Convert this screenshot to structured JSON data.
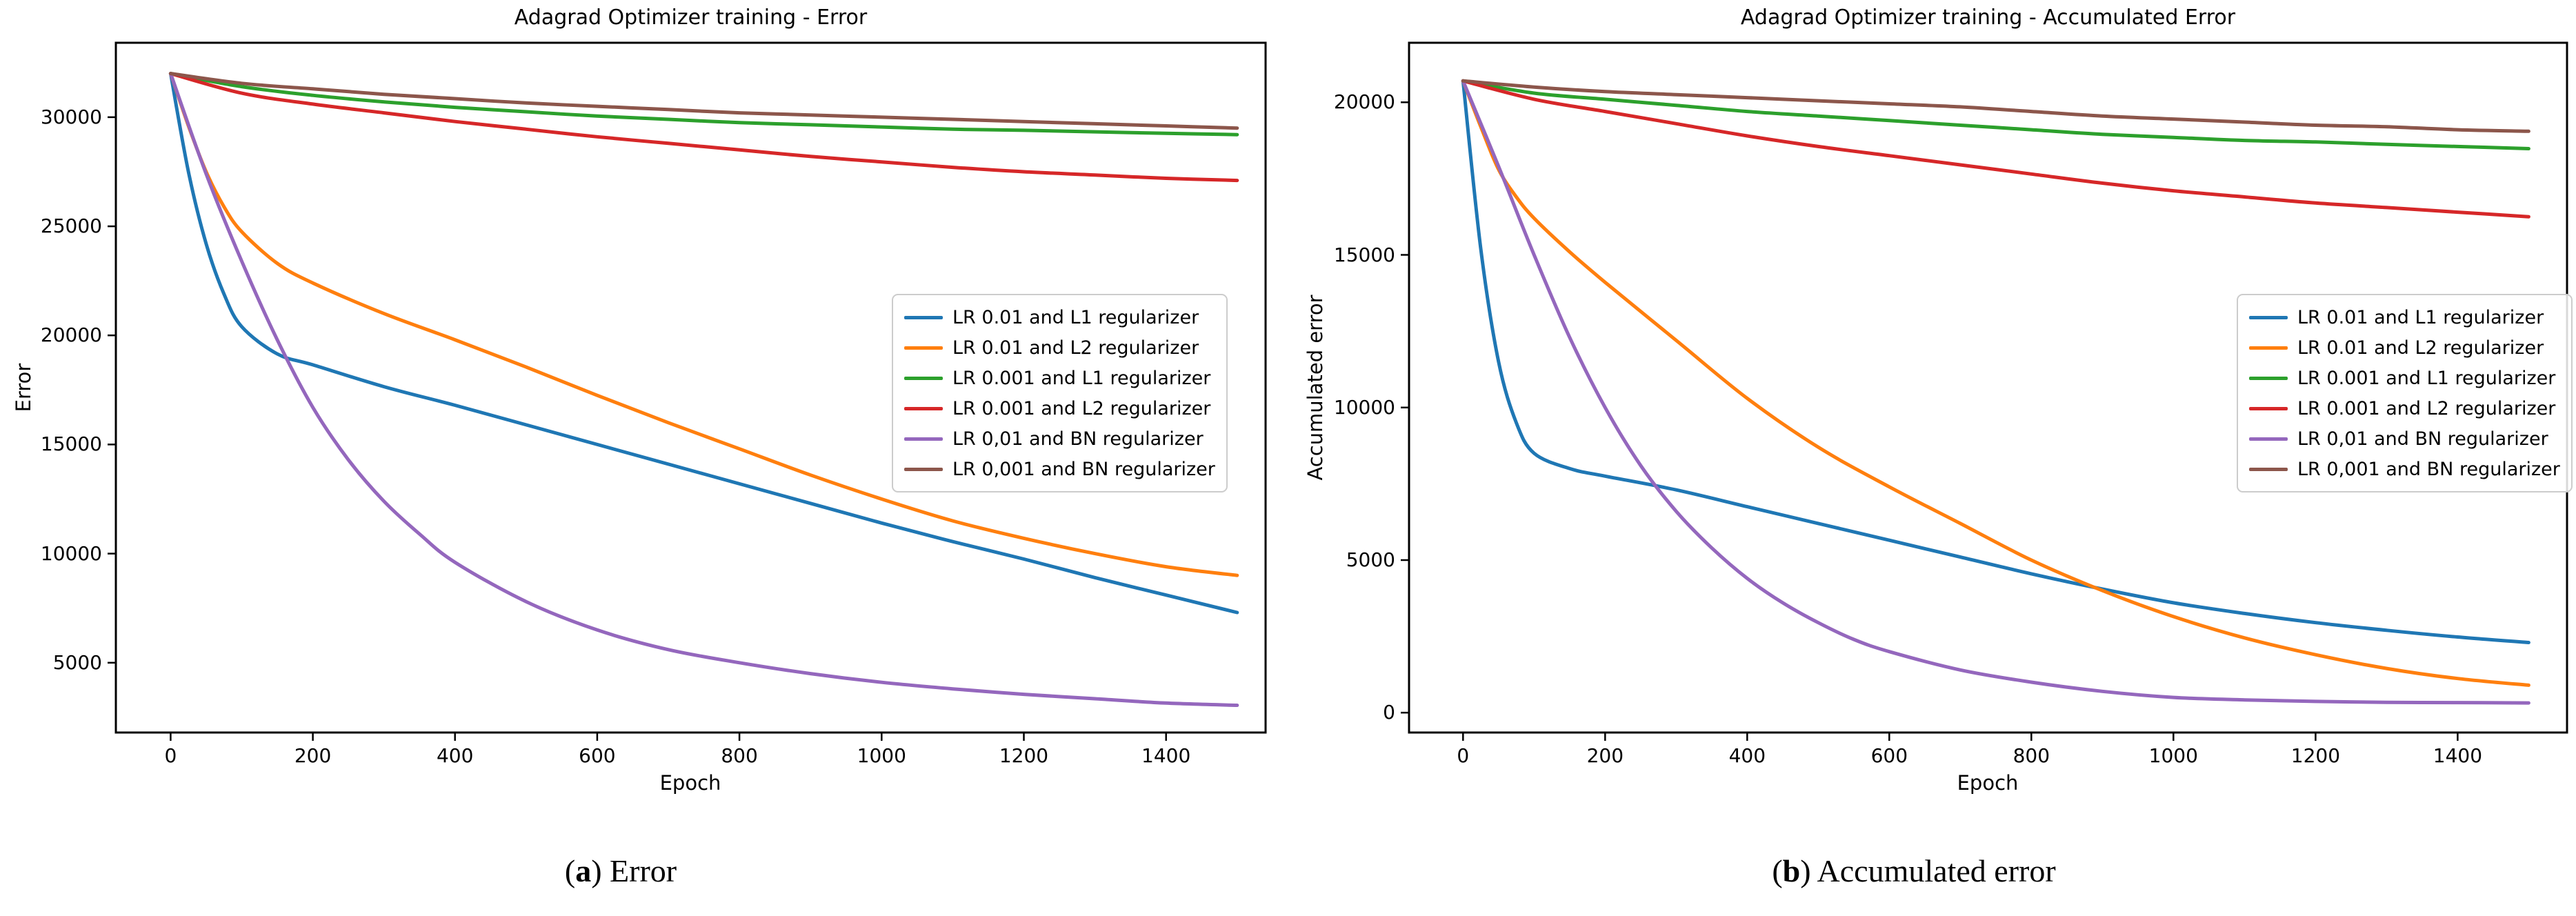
{
  "figure": {
    "background": "#ffffff",
    "captions": [
      {
        "open": "(",
        "label": "a",
        "close": ")",
        "text": "Error"
      },
      {
        "open": "(",
        "label": "b",
        "close": ")",
        "text": "Accumulated error"
      }
    ]
  },
  "palette": {
    "blue": "#1f77b4",
    "orange": "#ff7f0e",
    "green": "#2ca02c",
    "red": "#d62728",
    "purple": "#9467bd",
    "brown": "#8c564b",
    "axis": "#000000",
    "legend_border": "#cccccc"
  },
  "chart_data": [
    {
      "type": "line",
      "title": "Adagrad Optimizer training - Error",
      "xlabel": "Epoch",
      "ylabel": "Error",
      "xlim": [
        -77,
        1540
      ],
      "ylim": [
        1800,
        33410
      ],
      "x_ticks": [
        0,
        200,
        400,
        600,
        800,
        1000,
        1200,
        1400
      ],
      "y_ticks": [
        5000,
        10000,
        15000,
        20000,
        25000,
        30000
      ],
      "grid": false,
      "legend_position": "center right",
      "series": [
        {
          "name": "LR 0.01 and L1 regularizer",
          "color": "#1f77b4",
          "x": [
            0,
            25,
            50,
            75,
            100,
            150,
            200,
            300,
            400,
            500,
            600,
            700,
            800,
            900,
            1000,
            1100,
            1200,
            1300,
            1400,
            1500
          ],
          "y": [
            32000,
            27500,
            24200,
            21900,
            20400,
            19150,
            18650,
            17650,
            16800,
            15900,
            15000,
            14100,
            13200,
            12300,
            11400,
            10550,
            9750,
            8900,
            8100,
            7300
          ]
        },
        {
          "name": "LR 0.01 and L2 regularizer",
          "color": "#ff7f0e",
          "x": [
            0,
            25,
            50,
            75,
            100,
            150,
            200,
            300,
            400,
            500,
            600,
            700,
            800,
            900,
            1000,
            1100,
            1200,
            1300,
            1400,
            1500
          ],
          "y": [
            32000,
            29600,
            27500,
            25900,
            24750,
            23300,
            22400,
            21000,
            19800,
            18550,
            17250,
            16000,
            14800,
            13600,
            12500,
            11500,
            10700,
            10000,
            9400,
            9000
          ]
        },
        {
          "name": "LR 0.001 and L1 regularizer",
          "color": "#2ca02c",
          "x": [
            0,
            100,
            200,
            300,
            400,
            500,
            600,
            700,
            800,
            900,
            1000,
            1100,
            1200,
            1300,
            1400,
            1500
          ],
          "y": [
            32000,
            31400,
            31000,
            30700,
            30450,
            30250,
            30050,
            29900,
            29750,
            29650,
            29550,
            29450,
            29400,
            29330,
            29260,
            29200
          ]
        },
        {
          "name": "LR 0.001 and L2 regularizer",
          "color": "#d62728",
          "x": [
            0,
            100,
            200,
            300,
            400,
            500,
            600,
            700,
            800,
            900,
            1000,
            1100,
            1200,
            1300,
            1400,
            1500
          ],
          "y": [
            32000,
            31100,
            30600,
            30200,
            29800,
            29450,
            29100,
            28800,
            28500,
            28200,
            27950,
            27700,
            27500,
            27350,
            27200,
            27100
          ]
        },
        {
          "name": "LR 0,01 and BN regularizer",
          "color": "#9467bd",
          "x": [
            0,
            50,
            100,
            150,
            200,
            250,
            300,
            350,
            400,
            500,
            600,
            700,
            800,
            900,
            1000,
            1100,
            1200,
            1300,
            1400,
            1500
          ],
          "y": [
            32000,
            27400,
            23400,
            19800,
            16700,
            14300,
            12400,
            10900,
            9600,
            7800,
            6500,
            5600,
            5000,
            4500,
            4100,
            3800,
            3550,
            3350,
            3150,
            3050
          ]
        },
        {
          "name": "LR 0,001 and BN regularizer",
          "color": "#8c564b",
          "x": [
            0,
            100,
            200,
            300,
            400,
            500,
            600,
            700,
            800,
            900,
            1000,
            1100,
            1200,
            1300,
            1400,
            1500
          ],
          "y": [
            32000,
            31550,
            31300,
            31050,
            30850,
            30650,
            30500,
            30350,
            30200,
            30100,
            30000,
            29900,
            29800,
            29700,
            29600,
            29500
          ]
        }
      ]
    },
    {
      "type": "line",
      "title": "Adagrad Optimizer training - Accumulated Error",
      "xlabel": "Epoch",
      "ylabel": "Accumulated error",
      "xlim": [
        -76,
        1554
      ],
      "ylim": [
        -650,
        21950
      ],
      "x_ticks": [
        0,
        200,
        400,
        600,
        800,
        1000,
        1200,
        1400
      ],
      "y_ticks": [
        0,
        5000,
        10000,
        15000,
        20000
      ],
      "grid": false,
      "legend_position": "center right",
      "series": [
        {
          "name": "LR 0.01 and L1 regularizer",
          "color": "#1f77b4",
          "x": [
            0,
            25,
            50,
            75,
            100,
            150,
            200,
            300,
            400,
            500,
            600,
            700,
            800,
            900,
            1000,
            1100,
            1200,
            1300,
            1400,
            1500
          ],
          "y": [
            20700,
            15200,
            11500,
            9500,
            8500,
            8000,
            7750,
            7300,
            6750,
            6200,
            5650,
            5100,
            4550,
            4050,
            3600,
            3250,
            2950,
            2700,
            2480,
            2300
          ]
        },
        {
          "name": "LR 0.01 and L2 regularizer",
          "color": "#ff7f0e",
          "x": [
            0,
            25,
            50,
            75,
            100,
            150,
            200,
            300,
            400,
            500,
            600,
            700,
            800,
            900,
            1000,
            1100,
            1200,
            1300,
            1400,
            1500
          ],
          "y": [
            20700,
            19200,
            17800,
            16900,
            16200,
            15100,
            14100,
            12200,
            10300,
            8700,
            7400,
            6200,
            5000,
            4000,
            3150,
            2450,
            1900,
            1450,
            1120,
            900
          ]
        },
        {
          "name": "LR 0.001 and L1 regularizer",
          "color": "#2ca02c",
          "x": [
            0,
            100,
            200,
            300,
            400,
            500,
            600,
            700,
            800,
            900,
            1000,
            1100,
            1200,
            1300,
            1400,
            1500
          ],
          "y": [
            20700,
            20300,
            20100,
            19900,
            19700,
            19550,
            19400,
            19250,
            19100,
            18950,
            18850,
            18750,
            18700,
            18620,
            18550,
            18480
          ]
        },
        {
          "name": "LR 0.001 and L2 regularizer",
          "color": "#d62728",
          "x": [
            0,
            100,
            200,
            300,
            400,
            500,
            600,
            700,
            800,
            900,
            1000,
            1100,
            1200,
            1300,
            1400,
            1500
          ],
          "y": [
            20700,
            20100,
            19700,
            19300,
            18900,
            18550,
            18250,
            17950,
            17650,
            17350,
            17100,
            16900,
            16700,
            16550,
            16400,
            16250
          ]
        },
        {
          "name": "LR 0,01 and BN regularizer",
          "color": "#9467bd",
          "x": [
            0,
            50,
            100,
            150,
            200,
            250,
            300,
            350,
            400,
            450,
            500,
            550,
            600,
            700,
            800,
            900,
            1000,
            1100,
            1200,
            1300,
            1400,
            1500
          ],
          "y": [
            20700,
            17900,
            15000,
            12300,
            10000,
            8100,
            6600,
            5400,
            4400,
            3600,
            2950,
            2400,
            2000,
            1400,
            1000,
            700,
            500,
            420,
            370,
            340,
            330,
            320
          ]
        },
        {
          "name": "LR 0,001 and BN regularizer",
          "color": "#8c564b",
          "x": [
            0,
            100,
            200,
            300,
            400,
            500,
            600,
            700,
            800,
            900,
            1000,
            1100,
            1200,
            1300,
            1400,
            1500
          ],
          "y": [
            20700,
            20500,
            20350,
            20250,
            20150,
            20050,
            19950,
            19850,
            19700,
            19550,
            19450,
            19350,
            19250,
            19200,
            19100,
            19050
          ]
        }
      ]
    }
  ]
}
